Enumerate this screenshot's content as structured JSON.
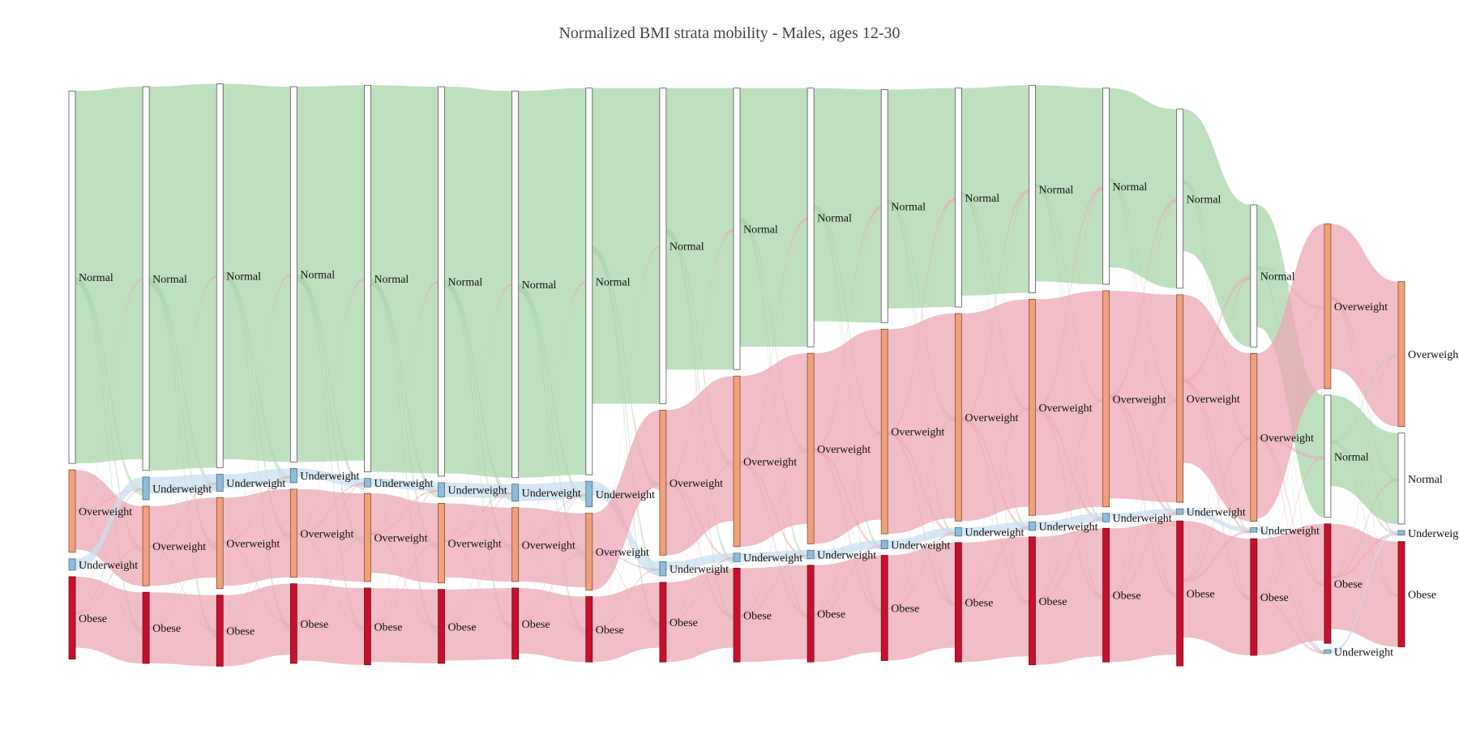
{
  "title": "Normalized BMI strata mobility - Males, ages 12-30",
  "categories": {
    "Normal": {
      "label": "Normal",
      "fill": "#ffffff",
      "stroke": "#555555",
      "link": "#a9d5a9"
    },
    "Underweight": {
      "label": "Underweight",
      "fill": "#8fbcd9",
      "stroke": "#4a6f8a",
      "link": "#c9dff0"
    },
    "Overweight": {
      "label": "Overweight",
      "fill": "#f0a07c",
      "stroke": "#8a4a30",
      "link": "#eca8b4"
    },
    "Obese": {
      "label": "Obese",
      "fill": "#c8102e",
      "stroke": "#6e0a18",
      "link": "#eca8b4"
    }
  },
  "chart_data": {
    "type": "sankey",
    "title": "Normalized BMI strata mobility - Males, ages 12-30",
    "columns": [
      {
        "nodes": [
          {
            "cat": "Normal",
            "share": 0.655
          },
          {
            "cat": "Overweight",
            "share": 0.145
          },
          {
            "cat": "Underweight",
            "share": 0.02
          },
          {
            "cat": "Obese",
            "share": 0.145
          }
        ]
      },
      {
        "nodes": [
          {
            "cat": "Normal",
            "share": 0.675
          },
          {
            "cat": "Underweight",
            "share": 0.04
          },
          {
            "cat": "Overweight",
            "share": 0.14
          },
          {
            "cat": "Obese",
            "share": 0.125
          }
        ]
      },
      {
        "nodes": [
          {
            "cat": "Normal",
            "share": 0.675
          },
          {
            "cat": "Underweight",
            "share": 0.03
          },
          {
            "cat": "Overweight",
            "share": 0.16
          },
          {
            "cat": "Obese",
            "share": 0.125
          }
        ]
      },
      {
        "nodes": [
          {
            "cat": "Normal",
            "share": 0.66
          },
          {
            "cat": "Underweight",
            "share": 0.025
          },
          {
            "cat": "Overweight",
            "share": 0.155
          },
          {
            "cat": "Obese",
            "share": 0.14
          }
        ]
      },
      {
        "nodes": [
          {
            "cat": "Normal",
            "share": 0.68
          },
          {
            "cat": "Underweight",
            "share": 0.015
          },
          {
            "cat": "Overweight",
            "share": 0.155
          },
          {
            "cat": "Obese",
            "share": 0.135
          }
        ]
      },
      {
        "nodes": [
          {
            "cat": "Normal",
            "share": 0.685
          },
          {
            "cat": "Underweight",
            "share": 0.025
          },
          {
            "cat": "Overweight",
            "share": 0.14
          },
          {
            "cat": "Obese",
            "share": 0.13
          }
        ]
      },
      {
        "nodes": [
          {
            "cat": "Normal",
            "share": 0.68
          },
          {
            "cat": "Underweight",
            "share": 0.03
          },
          {
            "cat": "Overweight",
            "share": 0.13
          },
          {
            "cat": "Obese",
            "share": 0.125
          }
        ]
      },
      {
        "nodes": [
          {
            "cat": "Normal",
            "share": 0.68
          },
          {
            "cat": "Underweight",
            "share": 0.045
          },
          {
            "cat": "Overweight",
            "share": 0.135
          },
          {
            "cat": "Obese",
            "share": 0.115
          }
        ]
      },
      {
        "nodes": [
          {
            "cat": "Normal",
            "share": 0.555
          },
          {
            "cat": "Overweight",
            "share": 0.255
          },
          {
            "cat": "Underweight",
            "share": 0.025
          },
          {
            "cat": "Obese",
            "share": 0.14
          }
        ]
      },
      {
        "nodes": [
          {
            "cat": "Normal",
            "share": 0.495
          },
          {
            "cat": "Overweight",
            "share": 0.3
          },
          {
            "cat": "Underweight",
            "share": 0.015
          },
          {
            "cat": "Obese",
            "share": 0.165
          }
        ]
      },
      {
        "nodes": [
          {
            "cat": "Normal",
            "share": 0.455
          },
          {
            "cat": "Overweight",
            "share": 0.335
          },
          {
            "cat": "Underweight",
            "share": 0.015
          },
          {
            "cat": "Obese",
            "share": 0.17
          }
        ]
      },
      {
        "nodes": [
          {
            "cat": "Normal",
            "share": 0.41
          },
          {
            "cat": "Overweight",
            "share": 0.36
          },
          {
            "cat": "Underweight",
            "share": 0.015
          },
          {
            "cat": "Obese",
            "share": 0.185
          }
        ]
      },
      {
        "nodes": [
          {
            "cat": "Normal",
            "share": 0.385
          },
          {
            "cat": "Overweight",
            "share": 0.365
          },
          {
            "cat": "Underweight",
            "share": 0.015
          },
          {
            "cat": "Obese",
            "share": 0.21
          }
        ]
      },
      {
        "nodes": [
          {
            "cat": "Normal",
            "share": 0.365
          },
          {
            "cat": "Overweight",
            "share": 0.38
          },
          {
            "cat": "Underweight",
            "share": 0.015
          },
          {
            "cat": "Obese",
            "share": 0.225
          }
        ]
      },
      {
        "nodes": [
          {
            "cat": "Normal",
            "share": 0.345
          },
          {
            "cat": "Overweight",
            "share": 0.38
          },
          {
            "cat": "Underweight",
            "share": 0.015
          },
          {
            "cat": "Obese",
            "share": 0.235
          }
        ]
      },
      {
        "nodes": [
          {
            "cat": "Normal",
            "share": 0.315
          },
          {
            "cat": "Overweight",
            "share": 0.365
          },
          {
            "cat": "Underweight",
            "share": 0.01
          },
          {
            "cat": "Obese",
            "share": 0.255
          }
        ]
      },
      {
        "nodes": [
          {
            "cat": "Normal",
            "share": 0.25
          },
          {
            "cat": "Overweight",
            "share": 0.295
          },
          {
            "cat": "Underweight",
            "share": 0.008
          },
          {
            "cat": "Obese",
            "share": 0.205
          }
        ]
      },
      {
        "nodes": [
          {
            "cat": "Overweight",
            "share": 0.29
          },
          {
            "cat": "Normal",
            "share": 0.215
          },
          {
            "cat": "Obese",
            "share": 0.21
          },
          {
            "cat": "Underweight",
            "share": 0.006
          }
        ]
      },
      {
        "nodes": [
          {
            "cat": "Overweight",
            "share": 0.255
          },
          {
            "cat": "Normal",
            "share": 0.16
          },
          {
            "cat": "Underweight",
            "share": 0.008
          },
          {
            "cat": "Obese",
            "share": 0.185
          }
        ]
      }
    ]
  }
}
